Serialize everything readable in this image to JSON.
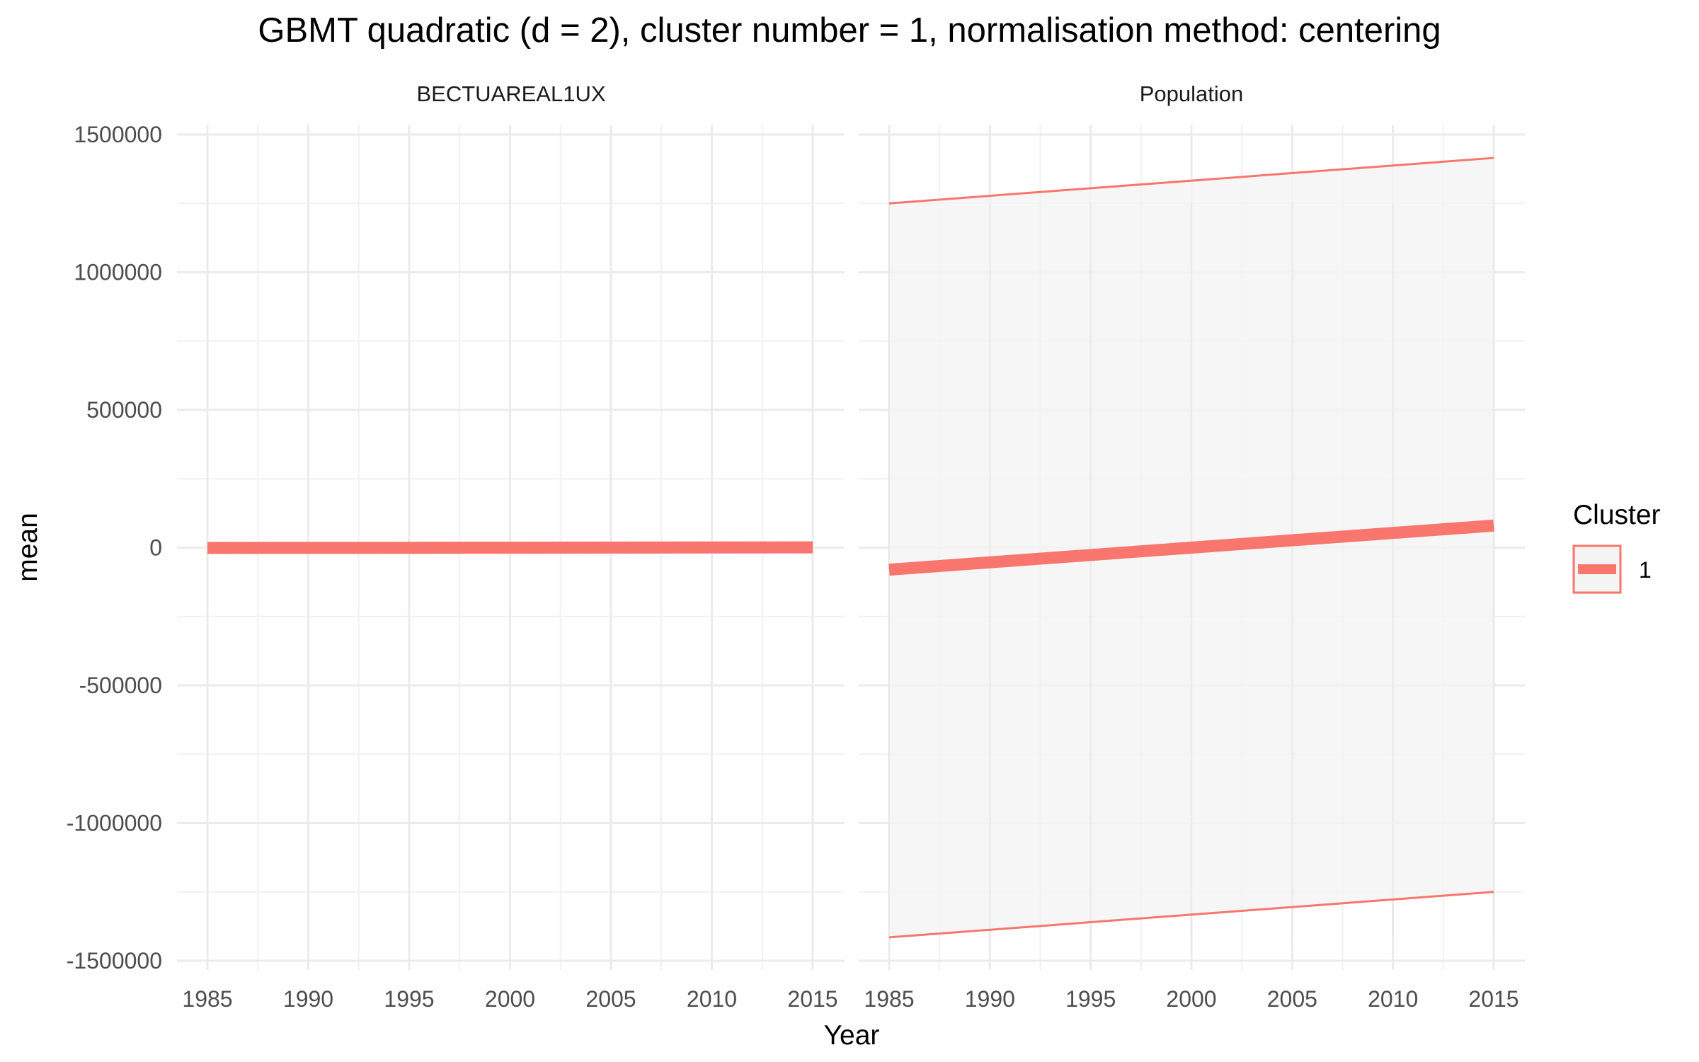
{
  "chart_data": {
    "type": "line",
    "title": "GBMT quadratic (d = 2), cluster number = 1, normalisation method: centering",
    "xlabel": "Year",
    "ylabel": "mean",
    "xlim": [
      1985,
      2015
    ],
    "ylim": [
      -1500000,
      1500000
    ],
    "x_ticks": [
      1985,
      1990,
      1995,
      2000,
      2005,
      2010,
      2015
    ],
    "x_tick_labels": [
      "1985",
      "1990",
      "1995",
      "2000",
      "2005",
      "2010",
      "2015"
    ],
    "y_ticks": [
      -1500000,
      -1000000,
      -500000,
      0,
      500000,
      1000000,
      1500000
    ],
    "y_tick_labels": [
      "-1500000",
      "-1000000",
      "-500000",
      "0",
      "500000",
      "1000000",
      "1500000"
    ],
    "grid": true,
    "series_color": "#F8766D",
    "ribbon_fill": "#F4F4F4",
    "legend": {
      "title": "Cluster",
      "position": "right",
      "entries": [
        {
          "label": "1",
          "color": "#F8766D"
        }
      ]
    },
    "panels": [
      {
        "strip_label": "BECTUAREAL1UX",
        "x": [
          1985,
          2015
        ],
        "mean": [
          -1000,
          1000
        ],
        "lower": [
          -1000,
          1000
        ],
        "upper": [
          -1000,
          1000
        ]
      },
      {
        "strip_label": "Population",
        "x": [
          1985,
          2015
        ],
        "mean": [
          -80000,
          80000
        ],
        "lower": [
          -1415000,
          -1250000
        ],
        "upper": [
          1250000,
          1415000
        ]
      }
    ]
  }
}
